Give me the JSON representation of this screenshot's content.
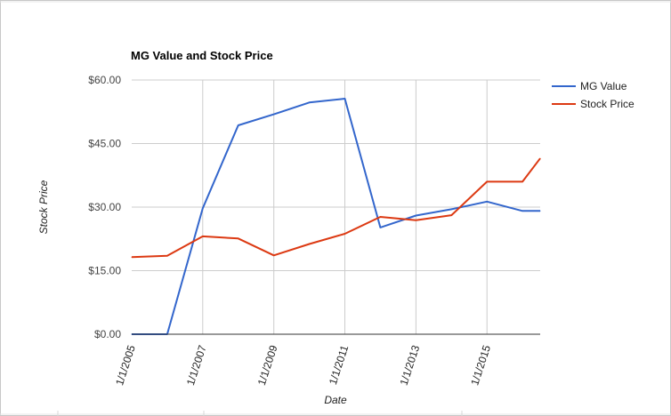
{
  "chart_data": {
    "type": "line",
    "title": "MG Value and Stock Price",
    "xlabel": "Date",
    "ylabel": "Stock Price",
    "x": [
      "1/1/2005",
      "1/1/2006",
      "1/1/2007",
      "1/1/2008",
      "1/1/2009",
      "1/1/2010",
      "1/1/2011",
      "1/1/2012",
      "1/1/2013",
      "1/1/2014",
      "1/1/2015",
      "1/1/2016",
      "7/1/2016"
    ],
    "x_ticks": [
      "1/1/2005",
      "1/1/2007",
      "1/1/2009",
      "1/1/2011",
      "1/1/2013",
      "1/1/2015"
    ],
    "x_range": [
      "1/1/2005",
      "7/1/2016"
    ],
    "y_ticks": [
      "$0.00",
      "$15.00",
      "$30.00",
      "$45.00",
      "$60.00"
    ],
    "ylim": [
      0,
      60
    ],
    "grid": true,
    "legend_position": "right",
    "series": [
      {
        "name": "MG Value",
        "color": "#3366cc",
        "values": [
          0,
          0,
          29.7,
          49.3,
          51.9,
          54.7,
          55.6,
          25.2,
          28,
          29.5,
          31.3,
          29.1,
          29.1
        ]
      },
      {
        "name": "Stock Price",
        "color": "#dc3912",
        "values": [
          18.2,
          18.5,
          23.1,
          22.6,
          18.6,
          21.3,
          23.7,
          27.7,
          26.9,
          28.1,
          36,
          36,
          41.5
        ]
      }
    ]
  }
}
